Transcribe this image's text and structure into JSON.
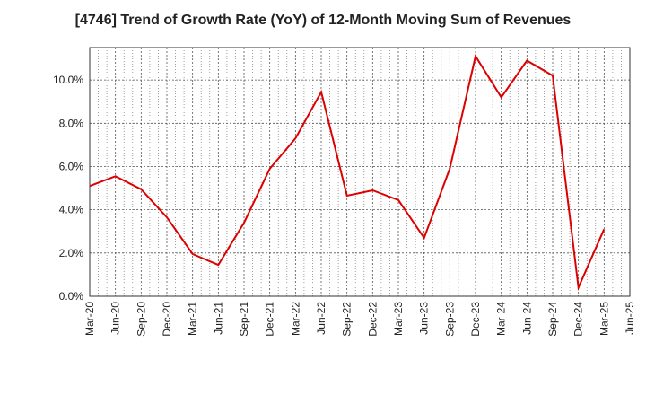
{
  "chart_data": {
    "type": "line",
    "title": "[4746]  Trend of Growth Rate (YoY) of 12-Month Moving Sum of Revenues",
    "xlabel": "",
    "ylabel": "",
    "x": [
      "Mar-20",
      "Jun-20",
      "Sep-20",
      "Dec-20",
      "Mar-21",
      "Jun-21",
      "Sep-21",
      "Dec-21",
      "Mar-22",
      "Jun-22",
      "Sep-22",
      "Dec-22",
      "Mar-23",
      "Jun-23",
      "Sep-23",
      "Dec-23",
      "Mar-24",
      "Jun-24",
      "Sep-24",
      "Dec-24",
      "Mar-25",
      "Jun-25"
    ],
    "series": [
      {
        "color": "#dd0000",
        "values": [
          5.1,
          5.55,
          4.95,
          3.65,
          1.95,
          1.45,
          3.4,
          5.9,
          7.3,
          9.45,
          4.65,
          4.9,
          4.45,
          2.7,
          5.9,
          11.1,
          9.2,
          10.9,
          10.2,
          0.4,
          3.1,
          null
        ]
      }
    ],
    "ylim": [
      0,
      11.5
    ],
    "yticks": [
      0,
      2,
      4,
      6,
      8,
      10
    ],
    "ytick_labels": [
      "0.0%",
      "2.0%",
      "4.0%",
      "6.0%",
      "8.0%",
      "10.0%"
    ],
    "grid": true,
    "legend": "none"
  }
}
